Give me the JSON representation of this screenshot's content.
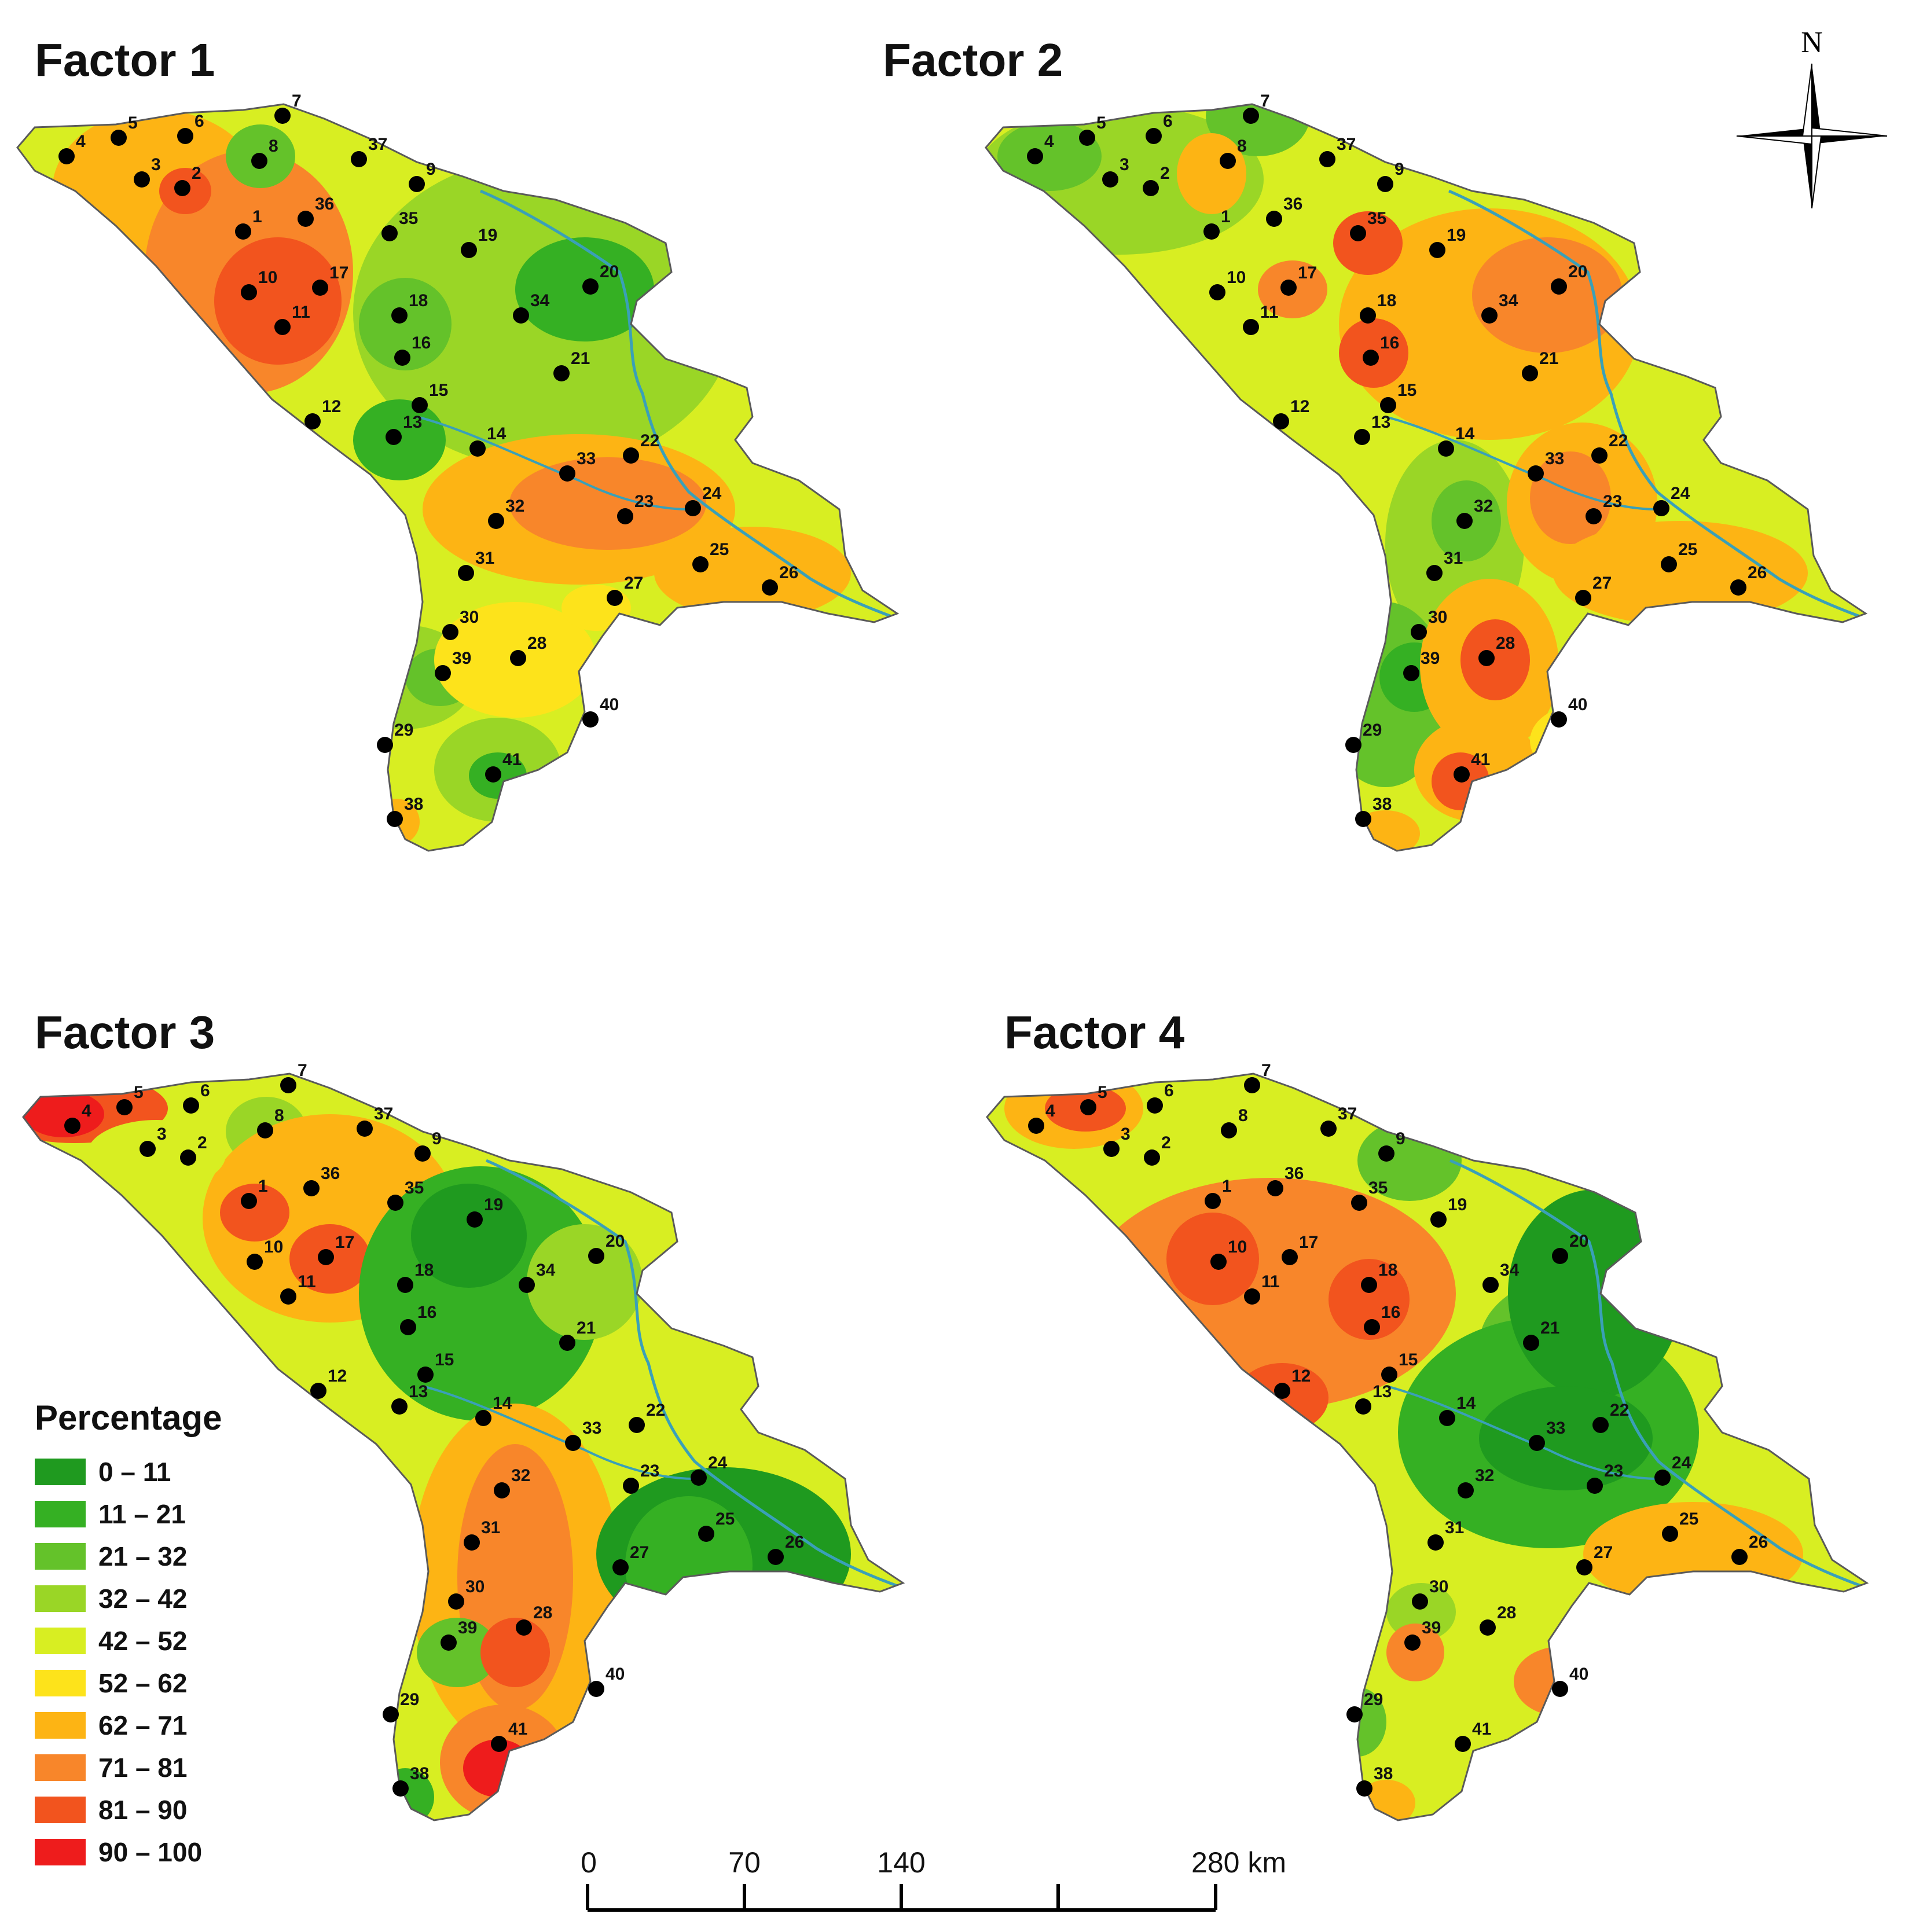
{
  "panels": [
    {
      "title": "Factor 1"
    },
    {
      "title": "Factor 2"
    },
    {
      "title": "Factor 3"
    },
    {
      "title": "Factor 4"
    }
  ],
  "legend": {
    "title": "Percentage",
    "classes": [
      {
        "label": "0 – 11",
        "color": "#1f9a1f"
      },
      {
        "label": "11 – 21",
        "color": "#35b023"
      },
      {
        "label": "21 – 32",
        "color": "#64c22a"
      },
      {
        "label": "32 – 42",
        "color": "#9ad626"
      },
      {
        "label": "42 – 52",
        "color": "#d8ee22"
      },
      {
        "label": "52 – 62",
        "color": "#fde31b"
      },
      {
        "label": "62 – 71",
        "color": "#fdb414"
      },
      {
        "label": "71 – 81",
        "color": "#f8862a"
      },
      {
        "label": "81 – 90",
        "color": "#f2541e"
      },
      {
        "label": "90 – 100",
        "color": "#ee1c1c"
      }
    ]
  },
  "north_arrow": {
    "label": "N"
  },
  "scale_bar": {
    "ticks": [
      "0",
      "70",
      "140",
      "280 km"
    ]
  },
  "stations": [
    "1",
    "2",
    "3",
    "4",
    "5",
    "6",
    "7",
    "8",
    "9",
    "10",
    "11",
    "12",
    "13",
    "14",
    "15",
    "16",
    "17",
    "18",
    "19",
    "20",
    "21",
    "22",
    "23",
    "24",
    "25",
    "26",
    "27",
    "28",
    "29",
    "30",
    "31",
    "32",
    "33",
    "34",
    "35",
    "36",
    "37",
    "38",
    "39",
    "40",
    "41"
  ]
}
